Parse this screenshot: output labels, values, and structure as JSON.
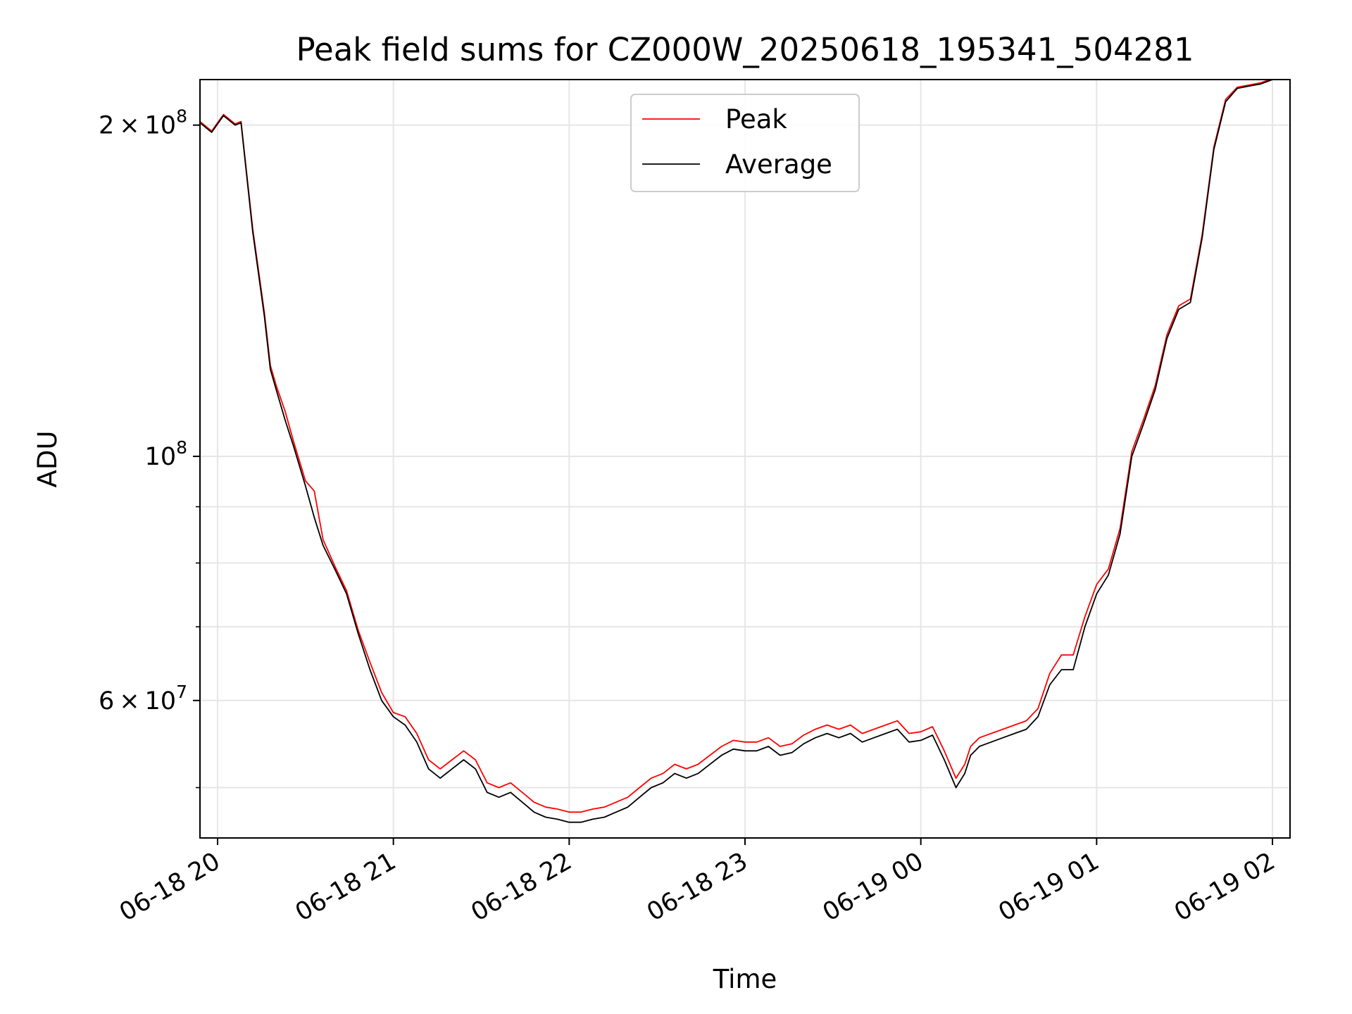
{
  "chart_data": {
    "type": "line",
    "title": "Peak field sums for CZ000W_20250618_195341_504281",
    "xlabel": "Time",
    "ylabel": "ADU",
    "yscale": "log",
    "grid": true,
    "legend_position": "top-center",
    "xlim": [
      "2025-06-18 19:54",
      "2025-06-19 02:06"
    ],
    "ylim": [
      45000000,
      220000000
    ],
    "x_ticks": [
      {
        "label": "06-18 20",
        "value": "2025-06-18 20:00"
      },
      {
        "label": "06-18 21",
        "value": "2025-06-18 21:00"
      },
      {
        "label": "06-18 22",
        "value": "2025-06-18 22:00"
      },
      {
        "label": "06-18 23",
        "value": "2025-06-18 23:00"
      },
      {
        "label": "06-19 00",
        "value": "2025-06-19 00:00"
      },
      {
        "label": "06-19 01",
        "value": "2025-06-19 01:00"
      },
      {
        "label": "06-19 02",
        "value": "2025-06-19 02:00"
      }
    ],
    "y_ticks": [
      {
        "value": 200000000,
        "mantissa": "2",
        "exp": "8"
      },
      {
        "value": 100000000,
        "mantissa": "",
        "exp": "8"
      },
      {
        "value": 60000000,
        "mantissa": "6",
        "exp": "7"
      }
    ],
    "y_minor_ticks": [
      50000000,
      70000000,
      80000000,
      90000000
    ],
    "series": [
      {
        "name": "Average",
        "color": "#000000",
        "x": [
          "2025-06-18 19:54",
          "2025-06-18 19:58",
          "2025-06-18 20:02",
          "2025-06-18 20:06",
          "2025-06-18 20:08",
          "2025-06-18 20:12",
          "2025-06-18 20:16",
          "2025-06-18 20:18",
          "2025-06-18 20:20",
          "2025-06-18 20:23",
          "2025-06-18 20:26",
          "2025-06-18 20:30",
          "2025-06-18 20:33",
          "2025-06-18 20:36",
          "2025-06-18 20:40",
          "2025-06-18 20:44",
          "2025-06-18 20:48",
          "2025-06-18 20:52",
          "2025-06-18 20:56",
          "2025-06-18 21:00",
          "2025-06-18 21:04",
          "2025-06-18 21:08",
          "2025-06-18 21:12",
          "2025-06-18 21:16",
          "2025-06-18 21:20",
          "2025-06-18 21:24",
          "2025-06-18 21:28",
          "2025-06-18 21:32",
          "2025-06-18 21:36",
          "2025-06-18 21:40",
          "2025-06-18 21:44",
          "2025-06-18 21:48",
          "2025-06-18 21:52",
          "2025-06-18 21:56",
          "2025-06-18 22:00",
          "2025-06-18 22:04",
          "2025-06-18 22:08",
          "2025-06-18 22:12",
          "2025-06-18 22:16",
          "2025-06-18 22:20",
          "2025-06-18 22:24",
          "2025-06-18 22:28",
          "2025-06-18 22:32",
          "2025-06-18 22:36",
          "2025-06-18 22:40",
          "2025-06-18 22:44",
          "2025-06-18 22:48",
          "2025-06-18 22:52",
          "2025-06-18 22:56",
          "2025-06-18 23:00",
          "2025-06-18 23:04",
          "2025-06-18 23:08",
          "2025-06-18 23:12",
          "2025-06-18 23:16",
          "2025-06-18 23:20",
          "2025-06-18 23:24",
          "2025-06-18 23:28",
          "2025-06-18 23:32",
          "2025-06-18 23:36",
          "2025-06-18 23:40",
          "2025-06-18 23:44",
          "2025-06-18 23:48",
          "2025-06-18 23:52",
          "2025-06-18 23:56",
          "2025-06-19 00:00",
          "2025-06-19 00:04",
          "2025-06-19 00:08",
          "2025-06-19 00:12",
          "2025-06-19 00:15",
          "2025-06-19 00:17",
          "2025-06-19 00:20",
          "2025-06-19 00:24",
          "2025-06-19 00:28",
          "2025-06-19 00:32",
          "2025-06-19 00:36",
          "2025-06-19 00:40",
          "2025-06-19 00:44",
          "2025-06-19 00:48",
          "2025-06-19 00:52",
          "2025-06-19 00:56",
          "2025-06-19 01:00",
          "2025-06-19 01:04",
          "2025-06-19 01:08",
          "2025-06-19 01:12",
          "2025-06-19 01:16",
          "2025-06-19 01:20",
          "2025-06-19 01:24",
          "2025-06-19 01:28",
          "2025-06-19 01:32",
          "2025-06-19 01:36",
          "2025-06-19 01:40",
          "2025-06-19 01:44",
          "2025-06-19 01:48",
          "2025-06-19 01:52",
          "2025-06-19 01:56",
          "2025-06-19 02:00",
          "2025-06-19 02:04"
        ],
        "values": [
          201000000,
          197000000,
          204000000,
          200000000,
          201000000,
          160000000,
          134000000,
          120000000,
          115000000,
          108000000,
          102000000,
          94000000,
          88000000,
          83000000,
          79000000,
          75000000,
          69000000,
          64000000,
          60000000,
          58000000,
          57000000,
          55000000,
          52000000,
          51000000,
          52000000,
          53000000,
          52000000,
          49500000,
          49000000,
          49500000,
          48500000,
          47500000,
          47000000,
          46800000,
          46500000,
          46500000,
          46800000,
          47000000,
          47500000,
          48000000,
          49000000,
          50000000,
          50500000,
          51500000,
          51000000,
          51500000,
          52500000,
          53500000,
          54200000,
          54000000,
          54000000,
          54500000,
          53500000,
          53800000,
          54800000,
          55500000,
          56000000,
          55500000,
          56000000,
          55000000,
          55500000,
          56000000,
          56500000,
          55000000,
          55200000,
          55800000,
          53000000,
          50000000,
          51500000,
          53500000,
          54500000,
          55000000,
          55500000,
          56000000,
          56500000,
          58000000,
          62000000,
          64000000,
          64000000,
          70000000,
          75000000,
          78000000,
          85000000,
          100000000,
          107000000,
          115000000,
          128000000,
          136000000,
          138000000,
          158000000,
          190000000,
          210000000,
          216000000,
          217000000,
          218000000,
          220000000,
          220000000
        ]
      },
      {
        "name": "Peak",
        "color": "#ff0000",
        "x": [
          "2025-06-18 19:54",
          "2025-06-18 19:58",
          "2025-06-18 20:02",
          "2025-06-18 20:06",
          "2025-06-18 20:08",
          "2025-06-18 20:12",
          "2025-06-18 20:16",
          "2025-06-18 20:18",
          "2025-06-18 20:20",
          "2025-06-18 20:23",
          "2025-06-18 20:26",
          "2025-06-18 20:30",
          "2025-06-18 20:33",
          "2025-06-18 20:36",
          "2025-06-18 20:40",
          "2025-06-18 20:44",
          "2025-06-18 20:48",
          "2025-06-18 20:52",
          "2025-06-18 20:56",
          "2025-06-18 21:00",
          "2025-06-18 21:04",
          "2025-06-18 21:08",
          "2025-06-18 21:12",
          "2025-06-18 21:16",
          "2025-06-18 21:20",
          "2025-06-18 21:24",
          "2025-06-18 21:28",
          "2025-06-18 21:32",
          "2025-06-18 21:36",
          "2025-06-18 21:40",
          "2025-06-18 21:44",
          "2025-06-18 21:48",
          "2025-06-18 21:52",
          "2025-06-18 21:56",
          "2025-06-18 22:00",
          "2025-06-18 22:04",
          "2025-06-18 22:08",
          "2025-06-18 22:12",
          "2025-06-18 22:16",
          "2025-06-18 22:20",
          "2025-06-18 22:24",
          "2025-06-18 22:28",
          "2025-06-18 22:32",
          "2025-06-18 22:36",
          "2025-06-18 22:40",
          "2025-06-18 22:44",
          "2025-06-18 22:48",
          "2025-06-18 22:52",
          "2025-06-18 22:56",
          "2025-06-18 23:00",
          "2025-06-18 23:04",
          "2025-06-18 23:08",
          "2025-06-18 23:12",
          "2025-06-18 23:16",
          "2025-06-18 23:20",
          "2025-06-18 23:24",
          "2025-06-18 23:28",
          "2025-06-18 23:32",
          "2025-06-18 23:36",
          "2025-06-18 23:40",
          "2025-06-18 23:44",
          "2025-06-18 23:48",
          "2025-06-18 23:52",
          "2025-06-18 23:56",
          "2025-06-19 00:00",
          "2025-06-19 00:04",
          "2025-06-19 00:08",
          "2025-06-19 00:12",
          "2025-06-19 00:15",
          "2025-06-19 00:17",
          "2025-06-19 00:20",
          "2025-06-19 00:24",
          "2025-06-19 00:28",
          "2025-06-19 00:32",
          "2025-06-19 00:36",
          "2025-06-19 00:40",
          "2025-06-19 00:44",
          "2025-06-19 00:48",
          "2025-06-19 00:52",
          "2025-06-19 00:56",
          "2025-06-19 01:00",
          "2025-06-19 01:04",
          "2025-06-19 01:08",
          "2025-06-19 01:12",
          "2025-06-19 01:16",
          "2025-06-19 01:20",
          "2025-06-19 01:24",
          "2025-06-19 01:28",
          "2025-06-19 01:32",
          "2025-06-19 01:36",
          "2025-06-19 01:40",
          "2025-06-19 01:44",
          "2025-06-19 01:48",
          "2025-06-19 01:52",
          "2025-06-19 01:56",
          "2025-06-19 02:00",
          "2025-06-19 02:04"
        ],
        "values": [
          201500000,
          197500000,
          204500000,
          200500000,
          201500000,
          161000000,
          135000000,
          121000000,
          116000000,
          110000000,
          103000000,
          95000000,
          93000000,
          84000000,
          79500000,
          75500000,
          69500000,
          65000000,
          61000000,
          58500000,
          58000000,
          56000000,
          53000000,
          52000000,
          53000000,
          54000000,
          53000000,
          50500000,
          50000000,
          50500000,
          49500000,
          48500000,
          48000000,
          47800000,
          47500000,
          47500000,
          47800000,
          48000000,
          48500000,
          49000000,
          50000000,
          51000000,
          51500000,
          52500000,
          52000000,
          52500000,
          53500000,
          54500000,
          55200000,
          55000000,
          55000000,
          55500000,
          54500000,
          54800000,
          55800000,
          56500000,
          57000000,
          56500000,
          57000000,
          56000000,
          56500000,
          57000000,
          57500000,
          56000000,
          56200000,
          56800000,
          54000000,
          51000000,
          52500000,
          54500000,
          55500000,
          56000000,
          56500000,
          57000000,
          57500000,
          59000000,
          63500000,
          66000000,
          66000000,
          71500000,
          76500000,
          79000000,
          86000000,
          101000000,
          108000000,
          116000000,
          129000000,
          137000000,
          139000000,
          159000000,
          191000000,
          211000000,
          216500000,
          217500000,
          218500000,
          220500000,
          220500000
        ]
      }
    ]
  }
}
